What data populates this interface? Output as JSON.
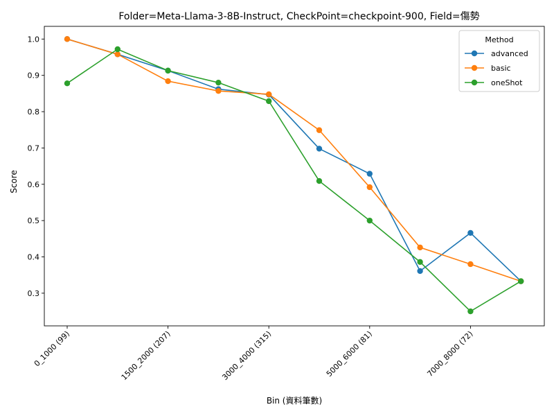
{
  "chart_data": {
    "type": "line",
    "title": "Folder=Meta-Llama-3-8B-Instruct, CheckPoint=checkpoint-900, Field=傷勢",
    "xlabel": "Bin (資料筆數)",
    "ylabel": "Score",
    "x_tick_labels": [
      "0_1000 (99)",
      "1500_2000 (207)",
      "3000_4000 (315)",
      "5000_6000 (81)",
      "7000_8000 (72)"
    ],
    "y_ticks": [
      0.3,
      0.4,
      0.5,
      0.6,
      0.7,
      0.8,
      0.9,
      1.0
    ],
    "y_tick_labels": [
      "0.3",
      "0.4",
      "0.5",
      "0.6",
      "0.7",
      "0.8",
      "0.9",
      "1.0"
    ],
    "ylim": [
      0.21,
      1.035
    ],
    "grid": false,
    "legend": {
      "title": "Method",
      "placement": "top-right"
    },
    "series": [
      {
        "name": "advanced",
        "color": "#1f77b4",
        "values": [
          1.0,
          0.958,
          0.913,
          0.862,
          0.847,
          0.698,
          0.629,
          0.361,
          0.466,
          0.333
        ]
      },
      {
        "name": "basic",
        "color": "#ff7f0e",
        "values": [
          1.0,
          0.958,
          0.884,
          0.857,
          0.848,
          0.749,
          0.592,
          0.426,
          0.38,
          0.333
        ]
      },
      {
        "name": "oneShot",
        "color": "#2ca02c",
        "values": [
          0.878,
          0.972,
          0.913,
          0.88,
          0.829,
          0.609,
          0.5,
          0.386,
          0.25,
          0.333
        ]
      }
    ]
  }
}
